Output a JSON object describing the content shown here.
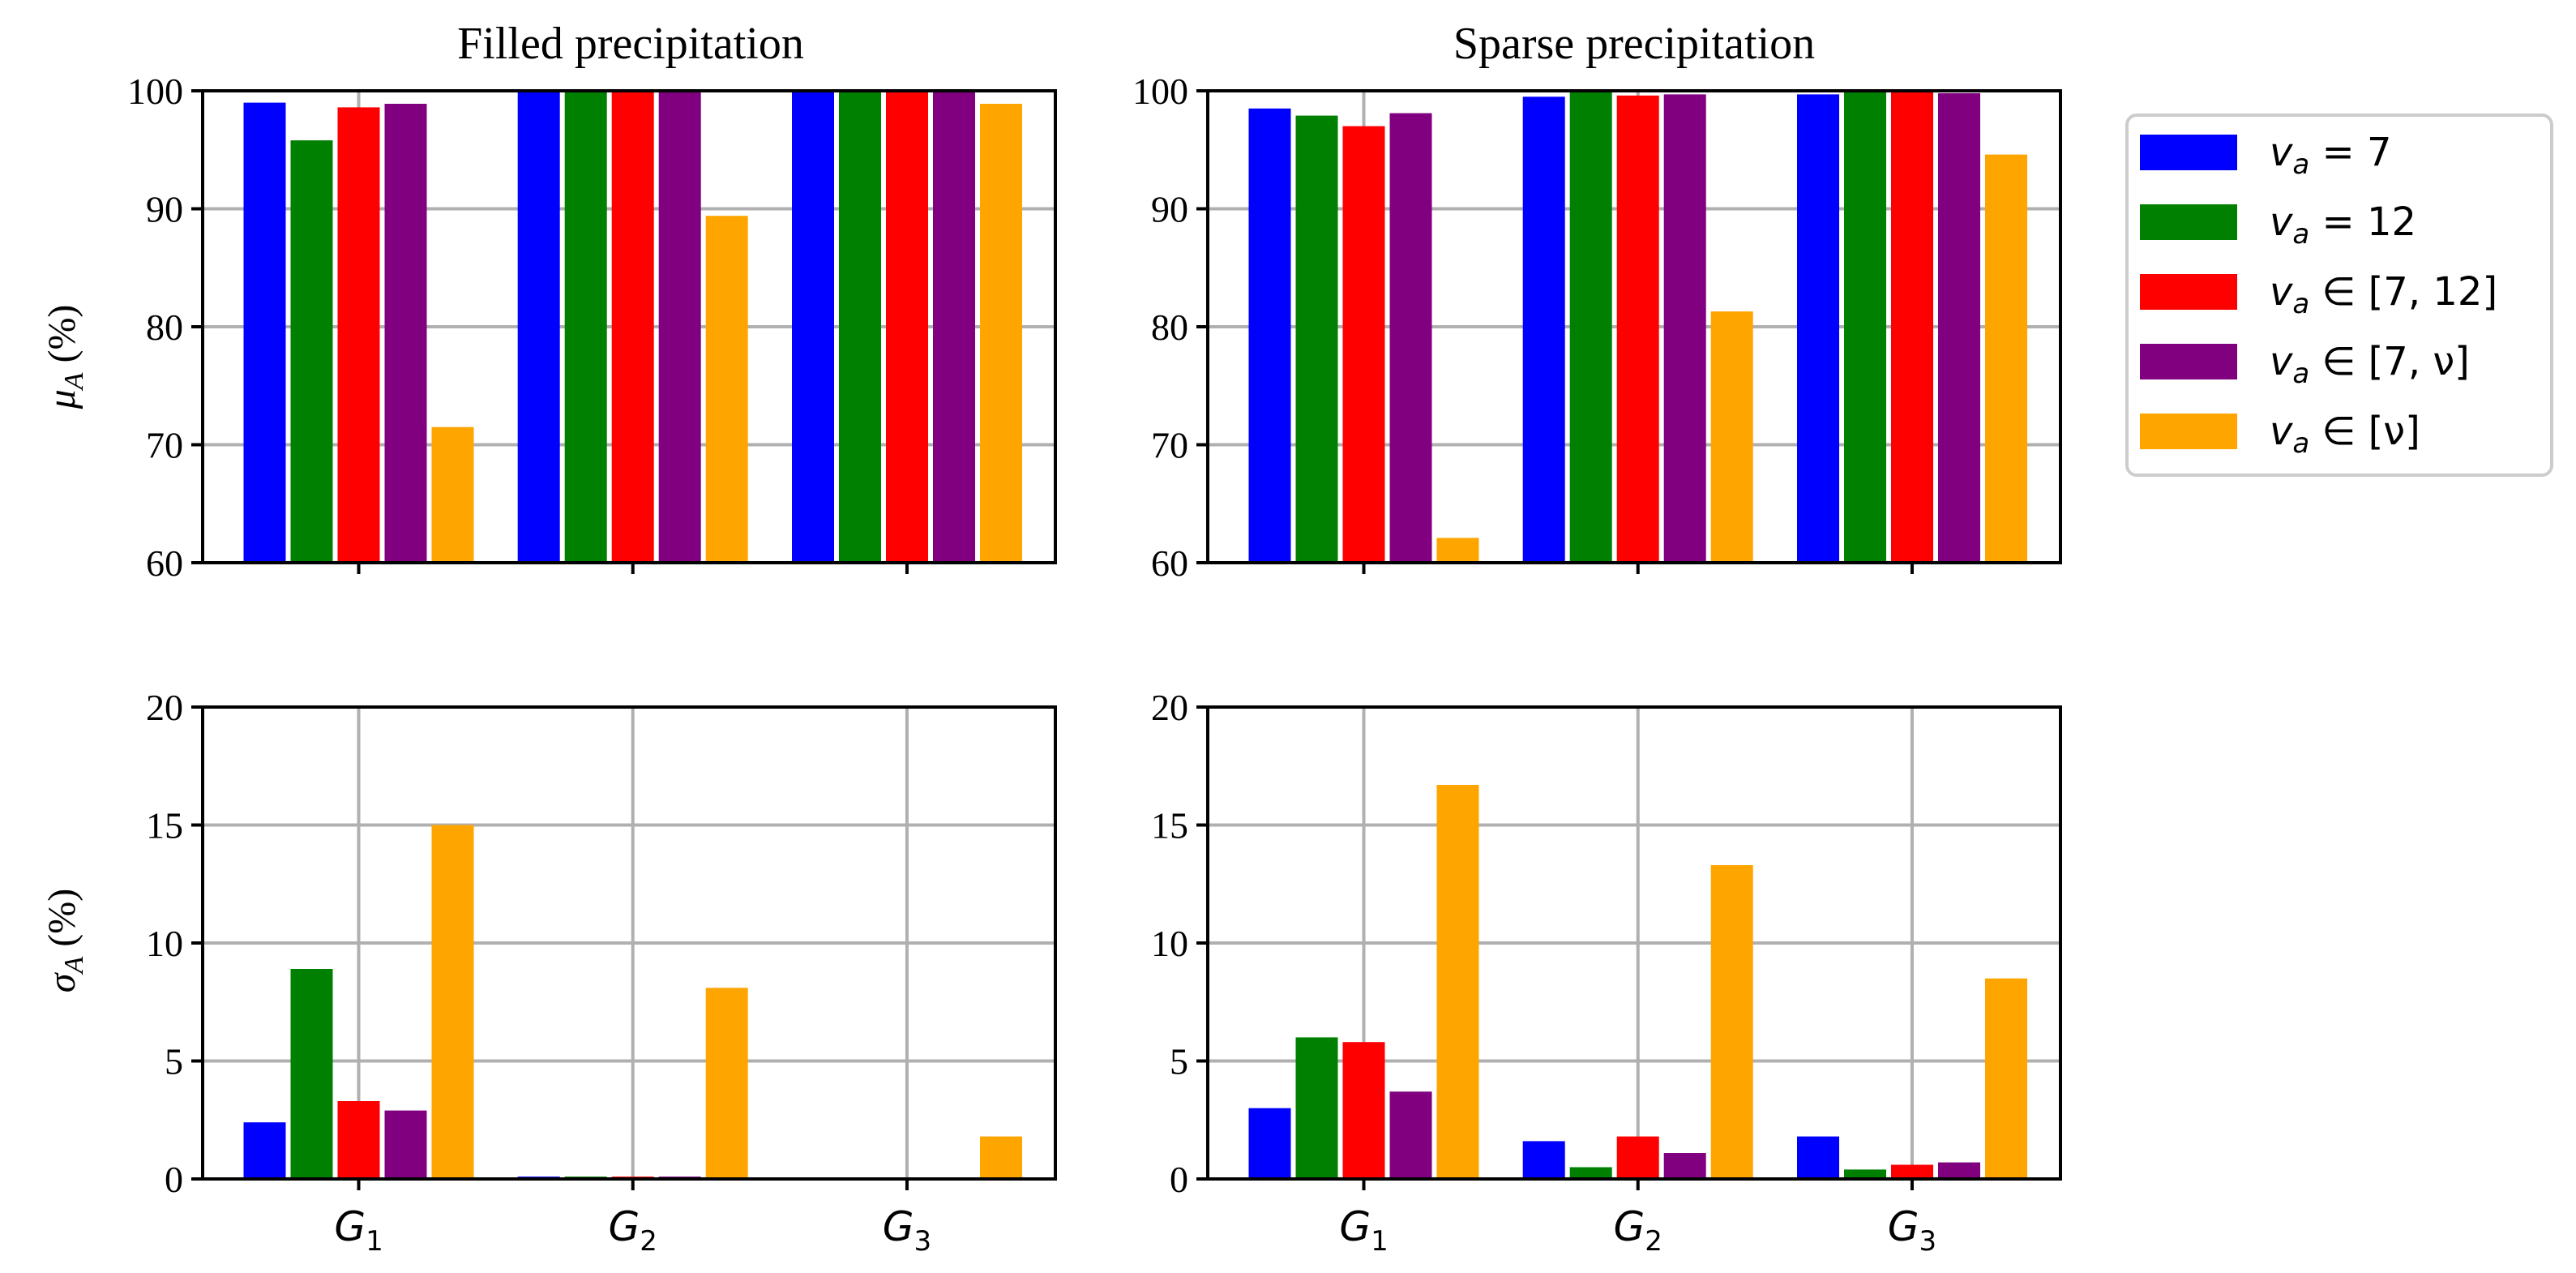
{
  "colors": {
    "v7": "#0000ff",
    "v12": "#008000",
    "v7_12": "#ff0000",
    "v7_nu": "#800080",
    "nu": "#ffa500"
  },
  "legend": [
    {
      "key": "v7",
      "label": "v_a = 7"
    },
    {
      "key": "v12",
      "label": "v_a = 12"
    },
    {
      "key": "v7_12",
      "label": "v_a ∈ [7, 12]"
    },
    {
      "key": "v7_nu",
      "label": "v_a ∈ [7, ν]"
    },
    {
      "key": "nu",
      "label": "v_a ∈ [ν]"
    }
  ],
  "chart_data": [
    {
      "id": "filled-mu",
      "type": "bar",
      "title": "Filled precipitation",
      "ylabel": "μ_A (%)",
      "ylim": [
        60,
        100
      ],
      "yticks": [
        60,
        70,
        80,
        90,
        100
      ],
      "categories": [
        "G1",
        "G2",
        "G3"
      ],
      "show_xticklabels": false,
      "series": [
        {
          "key": "v7",
          "name": "v_a = 7",
          "values": [
            99.0,
            99.9,
            99.9
          ]
        },
        {
          "key": "v12",
          "name": "v_a = 12",
          "values": [
            95.8,
            99.9,
            99.9
          ]
        },
        {
          "key": "v7_12",
          "name": "v_a ∈ [7, 12]",
          "values": [
            98.6,
            99.9,
            99.9
          ]
        },
        {
          "key": "v7_nu",
          "name": "v_a ∈ [7, ν]",
          "values": [
            98.9,
            99.9,
            99.9
          ]
        },
        {
          "key": "nu",
          "name": "v_a ∈ [ν]",
          "values": [
            71.5,
            89.4,
            98.9
          ]
        }
      ]
    },
    {
      "id": "sparse-mu",
      "type": "bar",
      "title": "Sparse precipitation",
      "ylabel": "",
      "ylim": [
        60,
        100
      ],
      "yticks": [
        60,
        70,
        80,
        90,
        100
      ],
      "categories": [
        "G1",
        "G2",
        "G3"
      ],
      "show_xticklabels": false,
      "series": [
        {
          "key": "v7",
          "name": "v_a = 7",
          "values": [
            98.5,
            99.5,
            99.7
          ]
        },
        {
          "key": "v12",
          "name": "v_a = 12",
          "values": [
            97.9,
            99.9,
            99.9
          ]
        },
        {
          "key": "v7_12",
          "name": "v_a ∈ [7, 12]",
          "values": [
            97.0,
            99.6,
            99.9
          ]
        },
        {
          "key": "v7_nu",
          "name": "v_a ∈ [7, ν]",
          "values": [
            98.1,
            99.7,
            99.8
          ]
        },
        {
          "key": "nu",
          "name": "v_a ∈ [ν]",
          "values": [
            62.1,
            81.3,
            94.6
          ]
        }
      ]
    },
    {
      "id": "filled-sigma",
      "type": "bar",
      "title": "",
      "ylabel": "σ_A (%)",
      "ylim": [
        0,
        20
      ],
      "yticks": [
        0,
        5,
        10,
        15,
        20
      ],
      "categories": [
        "G1",
        "G2",
        "G3"
      ],
      "show_xticklabels": true,
      "series": [
        {
          "key": "v7",
          "name": "v_a = 7",
          "values": [
            2.4,
            0.1,
            0.0
          ]
        },
        {
          "key": "v12",
          "name": "v_a = 12",
          "values": [
            8.9,
            0.1,
            0.0
          ]
        },
        {
          "key": "v7_12",
          "name": "v_a ∈ [7, 12]",
          "values": [
            3.3,
            0.1,
            0.0
          ]
        },
        {
          "key": "v7_nu",
          "name": "v_a ∈ [7, ν]",
          "values": [
            2.9,
            0.1,
            0.0
          ]
        },
        {
          "key": "nu",
          "name": "v_a ∈ [ν]",
          "values": [
            15.0,
            8.1,
            1.8
          ]
        }
      ]
    },
    {
      "id": "sparse-sigma",
      "type": "bar",
      "title": "",
      "ylabel": "",
      "ylim": [
        0,
        20
      ],
      "yticks": [
        0,
        5,
        10,
        15,
        20
      ],
      "categories": [
        "G1",
        "G2",
        "G3"
      ],
      "show_xticklabels": true,
      "series": [
        {
          "key": "v7",
          "name": "v_a = 7",
          "values": [
            3.0,
            1.6,
            1.8
          ]
        },
        {
          "key": "v12",
          "name": "v_a = 12",
          "values": [
            6.0,
            0.5,
            0.4
          ]
        },
        {
          "key": "v7_12",
          "name": "v_a ∈ [7, 12]",
          "values": [
            5.8,
            1.8,
            0.6
          ]
        },
        {
          "key": "v7_nu",
          "name": "v_a ∈ [7, ν]",
          "values": [
            3.7,
            1.1,
            0.7
          ]
        },
        {
          "key": "nu",
          "name": "v_a ∈ [ν]",
          "values": [
            16.7,
            13.3,
            8.5
          ]
        }
      ]
    }
  ]
}
